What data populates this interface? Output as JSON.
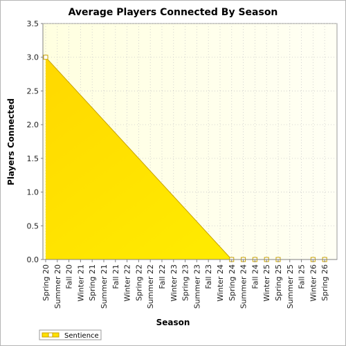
{
  "chart_data": {
    "type": "area",
    "title": "Average Players Connected By Season",
    "xlabel": "Season",
    "ylabel": "Players Connected",
    "categories": [
      "Spring 20",
      "Summer 20",
      "Fall 20",
      "Winter 21",
      "Spring 21",
      "Summer 21",
      "Fall 21",
      "Winter 22",
      "Spring 22",
      "Summer 22",
      "Fall 22",
      "Winter 23",
      "Spring 23",
      "Summer 23",
      "Fall 23",
      "Winter 24",
      "Spring 24",
      "Summer 24",
      "Fall 24",
      "Winter 25",
      "Spring 25",
      "Summer 25",
      "Fall 25",
      "Winter 26",
      "Spring 26"
    ],
    "series": [
      {
        "name": "Sentience",
        "x": [
          "Spring 20",
          "Spring 24",
          "Summer 24",
          "Fall 24",
          "Winter 25",
          "Spring 25",
          "Winter 26",
          "Spring 26"
        ],
        "values": [
          3.0,
          0.0,
          0.0,
          0.0,
          0.0,
          0.0,
          0.0,
          0.0
        ]
      }
    ],
    "ylim": [
      0,
      3.5
    ],
    "yticks": [
      "0.0",
      "0.5",
      "1.0",
      "1.5",
      "2.0",
      "2.5",
      "3.0",
      "3.5"
    ],
    "grid": true,
    "legend_position": "bottom-left",
    "colors": {
      "series": "#ffe000",
      "series_edge": "#c8a200",
      "plot_bg_left": "#ffffe0",
      "plot_bg_right": "#fffff4",
      "grid": "#c8c8c8"
    }
  }
}
